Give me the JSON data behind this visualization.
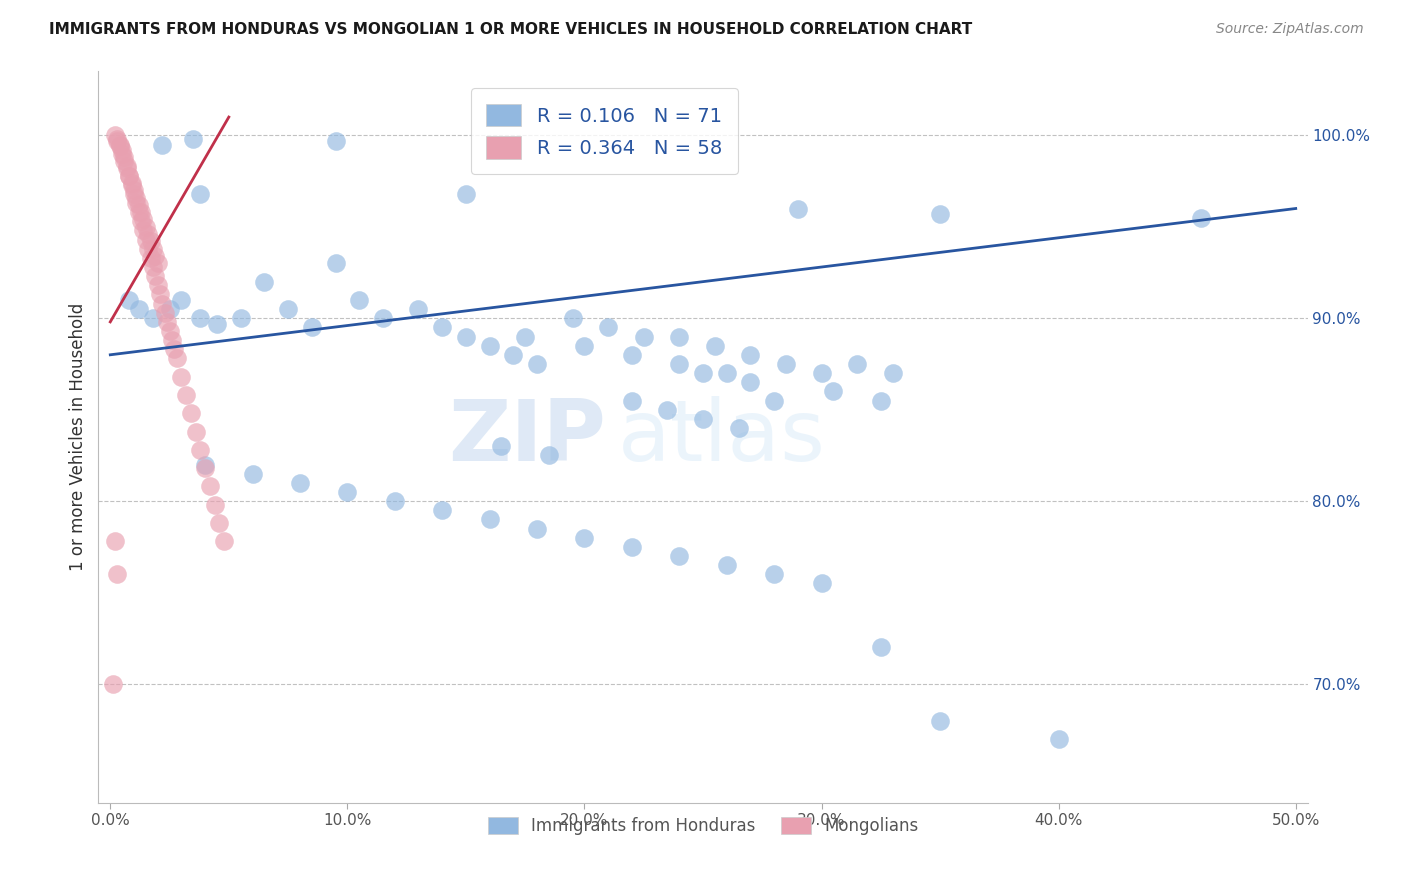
{
  "title": "IMMIGRANTS FROM HONDURAS VS MONGOLIAN 1 OR MORE VEHICLES IN HOUSEHOLD CORRELATION CHART",
  "source": "Source: ZipAtlas.com",
  "ylabel": "1 or more Vehicles in Household",
  "ytick_labels": [
    "100.0%",
    "90.0%",
    "80.0%",
    "70.0%"
  ],
  "ytick_values": [
    1.0,
    0.9,
    0.8,
    0.7
  ],
  "xlim": [
    -0.005,
    0.505
  ],
  "ylim": [
    0.635,
    1.035
  ],
  "legend_r1": "R = 0.106",
  "legend_n1": "N = 71",
  "legend_r2": "R = 0.364",
  "legend_n2": "N = 58",
  "blue_color": "#92b8e0",
  "pink_color": "#e8a0b0",
  "blue_line_color": "#2855a0",
  "pink_line_color": "#c0304a",
  "watermark_zip": "ZIP",
  "watermark_atlas": "atlas",
  "blue_scatter_x": [
    0.022,
    0.035,
    0.095,
    0.038,
    0.15,
    0.29,
    0.35,
    0.46,
    0.008,
    0.012,
    0.018,
    0.025,
    0.03,
    0.038,
    0.045,
    0.055,
    0.065,
    0.075,
    0.085,
    0.095,
    0.105,
    0.115,
    0.13,
    0.14,
    0.15,
    0.16,
    0.17,
    0.18,
    0.195,
    0.21,
    0.225,
    0.24,
    0.255,
    0.27,
    0.285,
    0.3,
    0.315,
    0.33,
    0.175,
    0.2,
    0.22,
    0.24,
    0.26,
    0.28,
    0.305,
    0.325,
    0.25,
    0.27,
    0.22,
    0.235,
    0.25,
    0.265,
    0.165,
    0.185,
    0.04,
    0.06,
    0.08,
    0.1,
    0.12,
    0.14,
    0.16,
    0.18,
    0.2,
    0.22,
    0.24,
    0.26,
    0.28,
    0.3,
    0.325,
    0.35,
    0.4
  ],
  "blue_scatter_y": [
    0.995,
    0.998,
    0.997,
    0.968,
    0.968,
    0.96,
    0.957,
    0.955,
    0.91,
    0.905,
    0.9,
    0.905,
    0.91,
    0.9,
    0.897,
    0.9,
    0.92,
    0.905,
    0.895,
    0.93,
    0.91,
    0.9,
    0.905,
    0.895,
    0.89,
    0.885,
    0.88,
    0.875,
    0.9,
    0.895,
    0.89,
    0.89,
    0.885,
    0.88,
    0.875,
    0.87,
    0.875,
    0.87,
    0.89,
    0.885,
    0.88,
    0.875,
    0.87,
    0.855,
    0.86,
    0.855,
    0.87,
    0.865,
    0.855,
    0.85,
    0.845,
    0.84,
    0.83,
    0.825,
    0.82,
    0.815,
    0.81,
    0.805,
    0.8,
    0.795,
    0.79,
    0.785,
    0.78,
    0.775,
    0.77,
    0.765,
    0.76,
    0.755,
    0.72,
    0.68,
    0.67
  ],
  "pink_scatter_x": [
    0.003,
    0.004,
    0.005,
    0.006,
    0.007,
    0.008,
    0.009,
    0.01,
    0.011,
    0.012,
    0.013,
    0.014,
    0.015,
    0.016,
    0.017,
    0.018,
    0.019,
    0.02,
    0.021,
    0.022,
    0.023,
    0.024,
    0.025,
    0.026,
    0.027,
    0.028,
    0.03,
    0.032,
    0.034,
    0.036,
    0.038,
    0.04,
    0.042,
    0.044,
    0.046,
    0.048,
    0.002,
    0.003,
    0.004,
    0.005,
    0.006,
    0.007,
    0.008,
    0.009,
    0.01,
    0.011,
    0.012,
    0.013,
    0.014,
    0.015,
    0.016,
    0.017,
    0.018,
    0.019,
    0.02,
    0.002,
    0.003,
    0.001
  ],
  "pink_scatter_y": [
    0.998,
    0.995,
    0.992,
    0.988,
    0.983,
    0.978,
    0.973,
    0.968,
    0.963,
    0.958,
    0.953,
    0.948,
    0.943,
    0.938,
    0.933,
    0.928,
    0.923,
    0.918,
    0.913,
    0.908,
    0.903,
    0.898,
    0.893,
    0.888,
    0.883,
    0.878,
    0.868,
    0.858,
    0.848,
    0.838,
    0.828,
    0.818,
    0.808,
    0.798,
    0.788,
    0.778,
    1.0,
    0.997,
    0.994,
    0.99,
    0.986,
    0.982,
    0.978,
    0.974,
    0.97,
    0.966,
    0.962,
    0.958,
    0.954,
    0.95,
    0.946,
    0.942,
    0.938,
    0.934,
    0.93,
    0.778,
    0.76,
    0.7
  ],
  "blue_trend_x": [
    0.0,
    0.5
  ],
  "blue_trend_y": [
    0.88,
    0.96
  ],
  "pink_trend_x": [
    0.0,
    0.05
  ],
  "pink_trend_y": [
    0.898,
    1.01
  ],
  "xtick_positions": [
    0.0,
    0.1,
    0.2,
    0.3,
    0.4,
    0.5
  ],
  "xtick_labels": [
    "0.0%",
    "10.0%",
    "20.0%",
    "30.0%",
    "40.0%",
    "50.0%"
  ]
}
